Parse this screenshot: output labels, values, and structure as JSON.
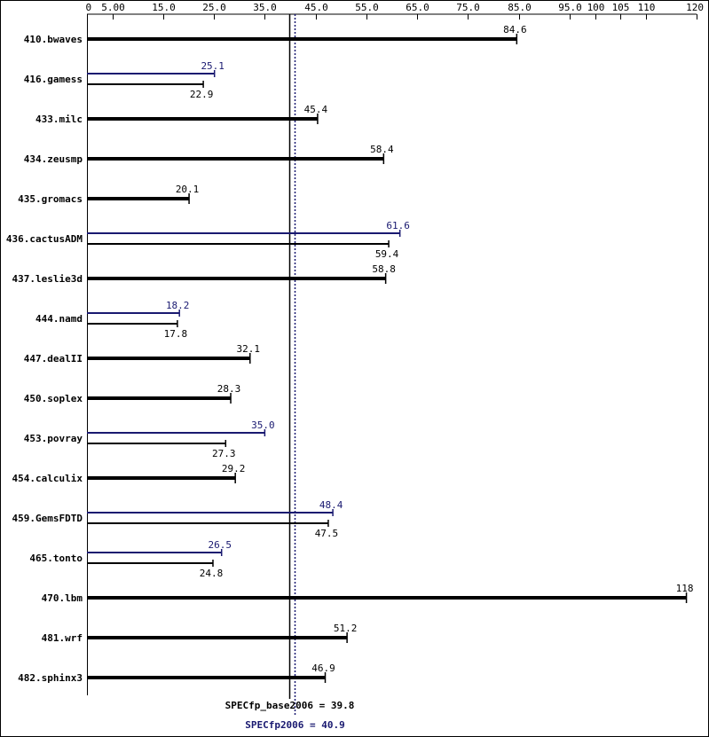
{
  "chart_data": {
    "type": "bar",
    "orientation": "horizontal",
    "title": "",
    "xlabel": "",
    "ylabel": "",
    "xlim": [
      0,
      120
    ],
    "x_ticks": [
      {
        "value": 0,
        "label": "0"
      },
      {
        "value": 5,
        "label": "5.00"
      },
      {
        "value": 15,
        "label": "15.0"
      },
      {
        "value": 25,
        "label": "25.0"
      },
      {
        "value": 35,
        "label": "35.0"
      },
      {
        "value": 45,
        "label": "45.0"
      },
      {
        "value": 55,
        "label": "55.0"
      },
      {
        "value": 65,
        "label": "65.0"
      },
      {
        "value": 75,
        "label": "75.0"
      },
      {
        "value": 85,
        "label": "85.0"
      },
      {
        "value": 95,
        "label": "95.0"
      },
      {
        "value": 100,
        "label": "100"
      },
      {
        "value": 105,
        "label": "105"
      },
      {
        "value": 110,
        "label": "110"
      },
      {
        "value": 120,
        "label": "120"
      }
    ],
    "grid": false,
    "legend": "none",
    "colors": {
      "base": "#000000",
      "peak": "#191970"
    },
    "benchmarks": [
      {
        "name": "410.bwaves",
        "base": 84.6,
        "base_label": "84.6",
        "peak": null,
        "peak_label": ""
      },
      {
        "name": "416.gamess",
        "base": 22.9,
        "base_label": "22.9",
        "peak": 25.1,
        "peak_label": "25.1"
      },
      {
        "name": "433.milc",
        "base": 45.4,
        "base_label": "45.4",
        "peak": null,
        "peak_label": ""
      },
      {
        "name": "434.zeusmp",
        "base": 58.4,
        "base_label": "58.4",
        "peak": null,
        "peak_label": ""
      },
      {
        "name": "435.gromacs",
        "base": 20.1,
        "base_label": "20.1",
        "peak": null,
        "peak_label": ""
      },
      {
        "name": "436.cactusADM",
        "base": 59.4,
        "base_label": "59.4",
        "peak": 61.6,
        "peak_label": "61.6"
      },
      {
        "name": "437.leslie3d",
        "base": 58.8,
        "base_label": "58.8",
        "peak": null,
        "peak_label": ""
      },
      {
        "name": "444.namd",
        "base": 17.8,
        "base_label": "17.8",
        "peak": 18.2,
        "peak_label": "18.2"
      },
      {
        "name": "447.dealII",
        "base": 32.1,
        "base_label": "32.1",
        "peak": null,
        "peak_label": ""
      },
      {
        "name": "450.soplex",
        "base": 28.3,
        "base_label": "28.3",
        "peak": null,
        "peak_label": ""
      },
      {
        "name": "453.povray",
        "base": 27.3,
        "base_label": "27.3",
        "peak": 35.0,
        "peak_label": "35.0"
      },
      {
        "name": "454.calculix",
        "base": 29.2,
        "base_label": "29.2",
        "peak": null,
        "peak_label": ""
      },
      {
        "name": "459.GemsFDTD",
        "base": 47.5,
        "base_label": "47.5",
        "peak": 48.4,
        "peak_label": "48.4"
      },
      {
        "name": "465.tonto",
        "base": 24.8,
        "base_label": "24.8",
        "peak": 26.5,
        "peak_label": "26.5"
      },
      {
        "name": "470.lbm",
        "base": 118,
        "base_label": "118",
        "peak": null,
        "peak_label": ""
      },
      {
        "name": "481.wrf",
        "base": 51.2,
        "base_label": "51.2",
        "peak": null,
        "peak_label": ""
      },
      {
        "name": "482.sphinx3",
        "base": 46.9,
        "base_label": "46.9",
        "peak": null,
        "peak_label": ""
      }
    ],
    "reference_lines": [
      {
        "id": "base",
        "value": 39.8,
        "label": "SPECfp_base2006 = 39.8",
        "style": "solid"
      },
      {
        "id": "peak",
        "value": 40.9,
        "label": "SPECfp2006 = 40.9",
        "style": "dotted"
      }
    ]
  }
}
